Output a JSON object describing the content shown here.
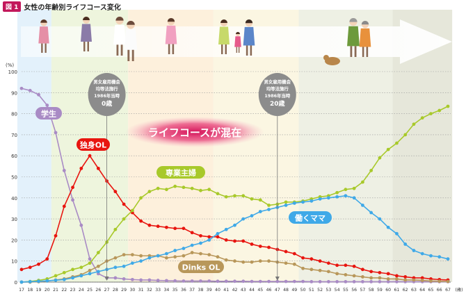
{
  "header": {
    "badge": "図 1",
    "title": "女性の年齢別ライフコース変化"
  },
  "labels": {
    "y_unit": "(%)",
    "x_unit": "(歳)",
    "note_left": [
      "男女雇用機会",
      "均等法施行",
      "1986年当時",
      "0歳"
    ],
    "note_right": [
      "男女雇用機会",
      "均等法施行",
      "1986年当時",
      "20歳"
    ],
    "banner": "ライフコースが混在"
  },
  "colors": {
    "student": "#a98bc5",
    "single_ol": "#e8150f",
    "housewife": "#a8c92a",
    "dinks": "#b8975a",
    "working_mom": "#3fa9e8",
    "banner_text": "#ffffff",
    "banner_glow": "#d4145a"
  },
  "chart_data": {
    "type": "line",
    "xlabel": "(歳)",
    "ylabel": "(%)",
    "ylim": [
      0,
      100
    ],
    "yticks": [
      0,
      10,
      20,
      30,
      40,
      50,
      60,
      70,
      80,
      90,
      100
    ],
    "x": [
      17,
      18,
      19,
      20,
      21,
      22,
      23,
      24,
      25,
      26,
      27,
      28,
      29,
      30,
      31,
      32,
      33,
      34,
      35,
      36,
      37,
      38,
      39,
      40,
      41,
      42,
      43,
      44,
      45,
      46,
      47,
      48,
      49,
      50,
      51,
      52,
      53,
      54,
      55,
      56,
      57,
      58,
      59,
      60,
      61,
      62,
      63,
      64,
      65,
      66,
      67
    ],
    "grid": true,
    "series": [
      {
        "name": "学生",
        "key": "student",
        "values": [
          92,
          91,
          89,
          84,
          71,
          53,
          39,
          27,
          11,
          4,
          2,
          2,
          1.5,
          1.2,
          1,
          1,
          0.8,
          0.7,
          0.6,
          0.5,
          0.5,
          0.5,
          0.5,
          0.4,
          0.4,
          0.4,
          0.4,
          0.3,
          0.3,
          0.3,
          0.3,
          0.3,
          0.3,
          0.3,
          0.2,
          0.2,
          0.2,
          0.2,
          0.2,
          0.2,
          0.2,
          0.2,
          0.2,
          0.2,
          0.2,
          0.2,
          0.2,
          0.2,
          0.2,
          0.2,
          0.2
        ]
      },
      {
        "name": "独身OL",
        "key": "single_ol",
        "values": [
          6,
          7,
          8.5,
          11,
          22,
          36,
          45,
          54,
          60,
          54,
          48,
          43,
          37,
          33,
          29,
          27,
          26.5,
          26,
          25.5,
          25.5,
          23.5,
          22,
          21.5,
          21.5,
          20,
          19.5,
          19.5,
          18,
          17,
          16.5,
          15.5,
          14.5,
          13.5,
          11.5,
          11,
          10,
          9,
          8,
          8,
          7.5,
          6,
          5,
          4.5,
          4,
          3,
          2.5,
          2,
          2,
          1.5,
          1.2,
          1
        ]
      },
      {
        "name": "専業主婦",
        "key": "housewife",
        "values": [
          0,
          0.3,
          0.8,
          1.5,
          3,
          4.5,
          6,
          7,
          9,
          14,
          19,
          25,
          30,
          34,
          40,
          43,
          44.5,
          44,
          45.5,
          45,
          44.5,
          43.5,
          44,
          42,
          40.5,
          41,
          41,
          39.5,
          39,
          36.5,
          37,
          38,
          38,
          38.5,
          39.5,
          40.5,
          41,
          42.5,
          44,
          44.5,
          47.5,
          53,
          59,
          63,
          66,
          70,
          75,
          78,
          80,
          81.5,
          83.5
        ]
      },
      {
        "name": "Dinks OL",
        "key": "dinks",
        "values": [
          0,
          0,
          0.2,
          0.5,
          1,
          1.5,
          2.5,
          3.5,
          5.5,
          7.5,
          10,
          11.5,
          13,
          13,
          12.5,
          12.5,
          12.5,
          11.5,
          12,
          12.5,
          14,
          13.5,
          13,
          12,
          10.5,
          10,
          9.5,
          9.5,
          10,
          10,
          9.5,
          9,
          8.5,
          6.5,
          6,
          5.5,
          5,
          4,
          3.5,
          3,
          2.5,
          2,
          2,
          1.5,
          1.5,
          1,
          1,
          0.8,
          0.5,
          0.4,
          0.3
        ]
      },
      {
        "name": "働くママ",
        "key": "working_mom",
        "values": [
          0,
          0.2,
          0.4,
          0.6,
          0.9,
          1.2,
          2,
          3,
          4,
          5,
          6,
          7,
          7.5,
          9,
          10,
          11.5,
          12.5,
          13.5,
          15,
          16,
          17.5,
          18.5,
          20,
          23,
          25,
          27,
          30,
          31.5,
          33.5,
          34.5,
          35.5,
          36.5,
          37.5,
          38,
          38.5,
          39.5,
          40,
          40.5,
          41,
          40,
          36.5,
          33,
          30,
          26,
          23,
          18,
          15,
          13.5,
          12.5,
          12,
          11
        ]
      }
    ],
    "annotations": [
      {
        "text": "男女雇用機会均等法施行 1986年当時 0歳",
        "x": 27
      },
      {
        "text": "男女雇用機会均等法施行 1986年当時 20歳",
        "x": 47
      },
      {
        "text": "ライフコースが混在"
      }
    ]
  }
}
